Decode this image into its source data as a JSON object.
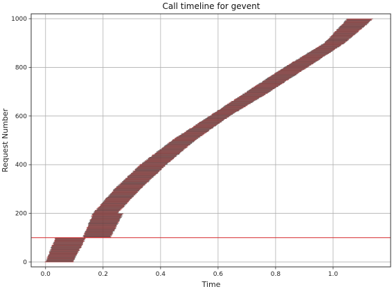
{
  "chart_data": {
    "type": "timeline",
    "title": "Call timeline for gevent",
    "xlabel": "Time",
    "ylabel": "Request Number",
    "xlim": [
      -0.05,
      1.2
    ],
    "ylim": [
      -20,
      1020
    ],
    "xticks": [
      0.0,
      0.2,
      0.4,
      0.6,
      0.8,
      1.0
    ],
    "xtick_labels": [
      "0.0",
      "0.2",
      "0.4",
      "0.6",
      "0.8",
      "1.0"
    ],
    "yticks": [
      0,
      200,
      400,
      600,
      800,
      1000
    ],
    "ytick_labels": [
      "0",
      "200",
      "400",
      "600",
      "800",
      "1000"
    ],
    "grid": true,
    "reference_line": {
      "y": 100,
      "color": "#d62728"
    },
    "bar_colors": [
      "#4d4d4d",
      "#d62728"
    ],
    "requests": {
      "count": 1000,
      "batch_size": 100
    },
    "batch_windows": [
      {
        "requests": [
          0,
          100
        ],
        "start": [
          0.0,
          0.035
        ],
        "end": [
          0.095,
          0.14
        ]
      },
      {
        "requests": [
          100,
          200
        ],
        "start": [
          0.13,
          0.165
        ],
        "end": [
          0.225,
          0.27
        ]
      },
      {
        "requests": [
          200,
          300
        ],
        "start": [
          0.165,
          0.24
        ],
        "end": [
          0.25,
          0.33
        ]
      },
      {
        "requests": [
          300,
          400
        ],
        "start": [
          0.24,
          0.33
        ],
        "end": [
          0.33,
          0.42
        ]
      },
      {
        "requests": [
          400,
          500
        ],
        "start": [
          0.33,
          0.44
        ],
        "end": [
          0.42,
          0.52
        ]
      },
      {
        "requests": [
          500,
          600
        ],
        "start": [
          0.44,
          0.57
        ],
        "end": [
          0.52,
          0.64
        ]
      },
      {
        "requests": [
          600,
          700
        ],
        "start": [
          0.57,
          0.7
        ],
        "end": [
          0.64,
          0.78
        ]
      },
      {
        "requests": [
          700,
          800
        ],
        "start": [
          0.7,
          0.83
        ],
        "end": [
          0.78,
          0.91
        ]
      },
      {
        "requests": [
          800,
          900
        ],
        "start": [
          0.83,
          0.97
        ],
        "end": [
          0.91,
          1.04
        ]
      },
      {
        "requests": [
          900,
          1000
        ],
        "start": [
          0.97,
          1.05
        ],
        "end": [
          1.04,
          1.14
        ]
      }
    ]
  }
}
